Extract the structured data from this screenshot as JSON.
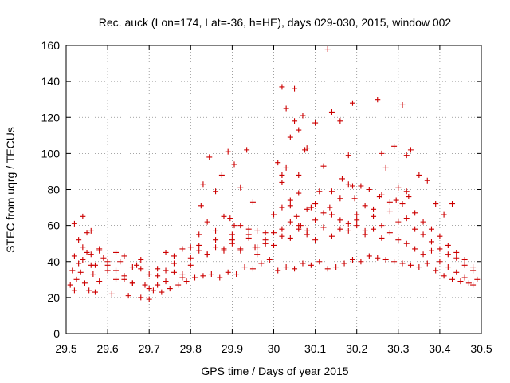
{
  "chart_data": {
    "type": "scatter",
    "title": "Rec. auck (Lon=174, Lat=-36, h=HE), days 029-030, 2015, window 002",
    "xlabel": "GPS time / Days of year 2015",
    "ylabel": "STEC from uqrg / TECUs",
    "xlim": [
      29.5,
      30.5
    ],
    "ylim": [
      0,
      160
    ],
    "xticks": [
      "29.5",
      "29.6",
      "29.7",
      "29.8",
      "29.9",
      "30",
      "30.1",
      "30.2",
      "30.3",
      "30.4",
      "30.5"
    ],
    "yticks": [
      "0",
      "20",
      "40",
      "60",
      "80",
      "100",
      "120",
      "140",
      "160"
    ],
    "grid": true,
    "marker": "+",
    "series": [
      {
        "name": "STEC",
        "color": "#cc0000",
        "x": [
          29.51,
          29.515,
          29.52,
          29.525,
          29.53,
          29.535,
          29.54,
          29.545,
          29.55,
          29.555,
          29.56,
          29.565,
          29.57,
          29.58,
          29.59,
          29.6,
          29.61,
          29.62,
          29.63,
          29.64,
          29.65,
          29.66,
          29.67,
          29.68,
          29.69,
          29.7,
          29.71,
          29.72,
          29.73,
          29.74,
          29.75,
          29.76,
          29.77,
          29.78,
          29.79,
          29.8,
          29.81,
          29.82,
          29.83,
          29.84,
          29.85,
          29.86,
          29.87,
          29.88,
          29.89,
          29.9,
          29.91,
          29.92,
          29.93,
          29.94,
          29.95,
          29.96,
          29.97,
          29.98,
          29.99,
          30.0,
          30.01,
          30.02,
          30.03,
          30.04,
          30.05,
          30.06,
          30.07,
          30.08,
          30.09,
          30.1,
          30.11,
          30.12,
          30.13,
          30.14,
          30.15,
          30.16,
          30.17,
          30.18,
          30.19,
          30.2,
          30.21,
          30.22,
          30.23,
          30.24,
          30.25,
          30.26,
          30.27,
          30.28,
          30.29,
          30.3,
          30.31,
          30.32,
          30.33,
          30.34,
          30.35,
          30.36,
          30.37,
          30.38,
          30.39,
          30.4,
          30.41,
          30.42,
          30.43,
          30.44,
          30.45,
          30.46,
          30.47,
          30.48,
          30.49,
          29.52,
          29.53,
          29.54,
          29.55,
          29.56,
          29.57,
          29.58,
          29.6,
          29.62,
          29.64,
          29.66,
          29.68,
          29.7,
          29.72,
          29.74,
          29.76,
          29.78,
          29.8,
          29.82,
          29.84,
          29.86,
          29.88,
          29.9,
          29.92,
          29.94,
          29.96,
          29.98,
          30.0,
          30.02,
          30.04,
          30.06,
          30.08,
          30.1,
          30.12,
          30.14,
          30.16,
          30.18,
          30.2,
          30.22,
          30.24,
          30.26,
          30.28,
          30.3,
          30.32,
          30.34,
          30.36,
          30.38,
          30.4,
          30.42,
          30.44,
          30.46,
          30.48,
          29.52,
          29.54,
          29.56,
          29.58,
          29.6,
          29.62,
          29.64,
          29.66,
          29.68,
          29.7,
          29.72,
          29.74,
          29.76,
          29.78,
          29.8,
          29.82,
          29.84,
          29.86,
          29.88,
          29.9,
          29.92,
          29.94,
          29.96,
          29.98,
          30.0,
          30.02,
          30.04,
          30.06,
          30.08,
          30.1,
          30.12,
          30.14,
          30.16,
          30.18,
          30.2,
          30.22,
          30.24,
          30.26,
          30.28,
          30.3,
          30.32,
          30.34,
          30.36,
          30.38,
          30.4,
          30.42,
          30.44,
          30.46,
          30.48,
          29.83,
          29.845,
          29.86,
          29.875,
          29.89,
          29.905,
          29.92,
          29.935,
          29.95,
          29.98,
          30.01,
          30.02,
          30.03,
          30.04,
          30.05,
          30.06,
          30.07,
          30.08,
          30.1,
          30.12,
          30.13,
          30.14,
          30.16,
          30.18,
          30.19,
          30.21,
          30.23,
          30.25,
          30.26,
          30.27,
          30.29,
          30.31,
          30.32,
          30.33,
          30.35,
          30.37,
          30.39,
          30.41,
          30.43,
          30.02,
          30.03,
          30.05,
          30.06,
          30.075,
          30.09,
          30.11,
          30.135,
          30.165,
          30.19,
          30.255,
          30.31,
          30.295,
          30.325,
          29.955,
          29.895,
          29.825,
          29.905,
          30.195,
          30.02,
          30.065,
          30.04,
          30.055
        ],
        "y": [
          27,
          35,
          24,
          30,
          39,
          34,
          41,
          28,
          45,
          24,
          38,
          33,
          23,
          29,
          42,
          35,
          22,
          30,
          40,
          32,
          21,
          28,
          38,
          20,
          27,
          19,
          24,
          32,
          23,
          35,
          25,
          43,
          27,
          33,
          29,
          38,
          31,
          46,
          32,
          44,
          33,
          48,
          31,
          46,
          34,
          50,
          33,
          47,
          37,
          55,
          36,
          48,
          39,
          52,
          41,
          56,
          35,
          58,
          37,
          62,
          36,
          58,
          39,
          55,
          38,
          52,
          40,
          59,
          36,
          54,
          37,
          63,
          39,
          57,
          41,
          60,
          40,
          55,
          43,
          58,
          42,
          53,
          41,
          56,
          40,
          52,
          39,
          50,
          38,
          47,
          37,
          44,
          39,
          46,
          35,
          40,
          32,
          37,
          30,
          34,
          29,
          31,
          28,
          27,
          30,
          43,
          52,
          48,
          56,
          44,
          38,
          46,
          40,
          35,
          43,
          37,
          41,
          33,
          36,
          45,
          39,
          47,
          42,
          49,
          44,
          52,
          47,
          55,
          46,
          58,
          44,
          50,
          49,
          54,
          53,
          60,
          57,
          63,
          59,
          66,
          58,
          61,
          63,
          57,
          65,
          60,
          68,
          62,
          64,
          58,
          55,
          51,
          47,
          44,
          42,
          38,
          35,
          61,
          65,
          57,
          47,
          38,
          45,
          30,
          28,
          36,
          25,
          27,
          29,
          34,
          31,
          48,
          55,
          62,
          57,
          65,
          52,
          60,
          53,
          57,
          50,
          66,
          70,
          74,
          78,
          69,
          72,
          67,
          79,
          75,
          83,
          66,
          71,
          69,
          77,
          73,
          81,
          79,
          67,
          62,
          58,
          54,
          49,
          45,
          41,
          37,
          83,
          98,
          79,
          88,
          101,
          94,
          81,
          102,
          73,
          56,
          95,
          137,
          125,
          109,
          136,
          113,
          121,
          103,
          117,
          93,
          158,
          123,
          118,
          99,
          128,
          82,
          80,
          130,
          100,
          92,
          104,
          127,
          99,
          102,
          88,
          85,
          72,
          66,
          72,
          88,
          92,
          118,
          88,
          102,
          70,
          79,
          70,
          86,
          82,
          76,
          72,
          74,
          76,
          48,
          64,
          71,
          60,
          75,
          84,
          60,
          71,
          65
        ]
      }
    ]
  }
}
